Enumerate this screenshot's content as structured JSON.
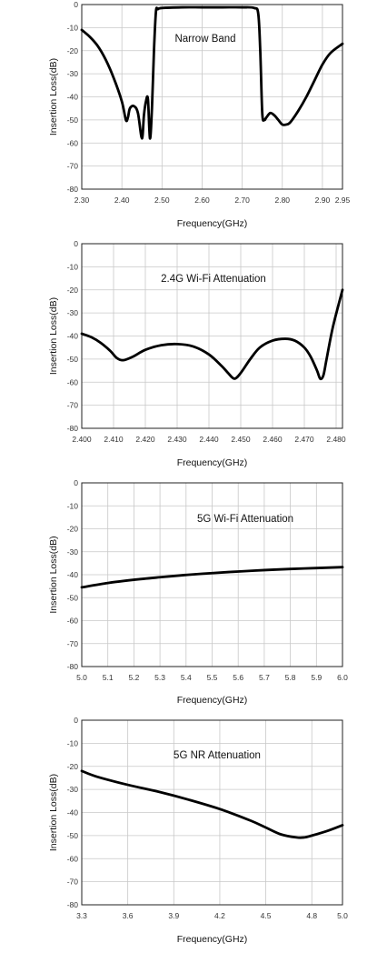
{
  "chart_data": [
    {
      "type": "line",
      "title": "Narrow Band",
      "xlabel": "Frequency(GHz)",
      "ylabel": "Insertion Loss(dB)",
      "xlim": [
        2.3,
        2.95
      ],
      "ylim": [
        -80,
        0
      ],
      "xticks": [
        "2.30",
        "2.40",
        "2.50",
        "2.60",
        "2.70",
        "2.80",
        "2.90",
        "2.95"
      ],
      "xtick_values": [
        2.3,
        2.4,
        2.5,
        2.6,
        2.7,
        2.8,
        2.9,
        2.95
      ],
      "yticks": [
        0,
        -10,
        -20,
        -30,
        -40,
        -50,
        -60,
        -70,
        -80
      ],
      "grid": true,
      "series": [
        {
          "x": [
            2.3,
            2.32,
            2.34,
            2.36,
            2.38,
            2.4,
            2.41,
            2.415,
            2.42,
            2.43,
            2.44,
            2.45,
            2.455,
            2.46,
            2.465,
            2.47,
            2.475,
            2.48,
            2.485,
            2.49,
            2.5,
            2.55,
            2.6,
            2.65,
            2.7,
            2.73,
            2.74,
            2.745,
            2.75,
            2.755,
            2.76,
            2.77,
            2.78,
            2.79,
            2.8,
            2.81,
            2.82,
            2.84,
            2.86,
            2.88,
            2.9,
            2.92,
            2.95
          ],
          "y": [
            -11,
            -14,
            -18,
            -24,
            -32,
            -42,
            -50,
            -49,
            -45,
            -44,
            -47,
            -58,
            -48,
            -42,
            -41,
            -58,
            -45,
            -20,
            -3,
            -2,
            -1.5,
            -1.2,
            -1.2,
            -1.2,
            -1.2,
            -1.5,
            -4,
            -20,
            -47,
            -50,
            -49,
            -47,
            -48,
            -50,
            -52,
            -52,
            -51,
            -46,
            -40,
            -33,
            -26,
            -21,
            -17
          ]
        }
      ]
    },
    {
      "type": "line",
      "title": "2.4G Wi-Fi Attenuation",
      "xlabel": "Frequency(GHz)",
      "ylabel": "Insertion Loss(dB)",
      "xlim": [
        2.4,
        2.482
      ],
      "ylim": [
        -80,
        0
      ],
      "xticks": [
        "2.400",
        "2.410",
        "2.420",
        "2.430",
        "2.440",
        "2.450",
        "2.460",
        "2.470",
        "2.480"
      ],
      "xtick_values": [
        2.4,
        2.41,
        2.42,
        2.43,
        2.44,
        2.45,
        2.46,
        2.47,
        2.48
      ],
      "yticks": [
        0,
        -10,
        -20,
        -30,
        -40,
        -50,
        -60,
        -70,
        -80
      ],
      "grid": true,
      "series": [
        {
          "x": [
            2.4,
            2.403,
            2.406,
            2.409,
            2.411,
            2.413,
            2.416,
            2.42,
            2.425,
            2.43,
            2.435,
            2.44,
            2.444,
            2.446,
            2.448,
            2.45,
            2.453,
            2.456,
            2.46,
            2.464,
            2.467,
            2.47,
            2.472,
            2.474,
            2.475,
            2.476,
            2.477,
            2.479,
            2.482
          ],
          "y": [
            -39,
            -40.5,
            -43,
            -46.5,
            -49.5,
            -50.5,
            -49,
            -46,
            -44,
            -43.5,
            -44.5,
            -48,
            -53,
            -56,
            -58.5,
            -56,
            -50,
            -45,
            -42,
            -41.2,
            -42,
            -45,
            -49,
            -55,
            -58.5,
            -57,
            -50,
            -36,
            -20
          ]
        }
      ]
    },
    {
      "type": "line",
      "title": "5G Wi-Fi Attenuation",
      "xlabel": "Frequency(GHz)",
      "ylabel": "Insertion Loss(dB)",
      "xlim": [
        5.0,
        6.0
      ],
      "ylim": [
        -80,
        0
      ],
      "xticks": [
        "5.0",
        "5.1",
        "5.2",
        "5.3",
        "5.4",
        "5.5",
        "5.6",
        "5.7",
        "5.8",
        "5.9",
        "6.0"
      ],
      "xtick_values": [
        5.0,
        5.1,
        5.2,
        5.3,
        5.4,
        5.5,
        5.6,
        5.7,
        5.8,
        5.9,
        6.0
      ],
      "yticks": [
        0,
        -10,
        -20,
        -30,
        -40,
        -50,
        -60,
        -70,
        -80
      ],
      "grid": true,
      "series": [
        {
          "x": [
            5.0,
            5.1,
            5.2,
            5.3,
            5.4,
            5.5,
            5.6,
            5.7,
            5.8,
            5.9,
            6.0
          ],
          "y": [
            -45.5,
            -43.6,
            -42.2,
            -41.1,
            -40.1,
            -39.3,
            -38.6,
            -38.0,
            -37.5,
            -37.1,
            -36.7
          ]
        }
      ]
    },
    {
      "type": "line",
      "title": "5G NR Attenuation",
      "xlabel": "Frequency(GHz)",
      "ylabel": "Insertion Loss(dB)",
      "xlim": [
        3.3,
        5.0
      ],
      "ylim": [
        -80,
        0
      ],
      "xticks": [
        "3.3",
        "3.6",
        "3.9",
        "4.2",
        "4.5",
        "4.8",
        "5.0"
      ],
      "xtick_values": [
        3.3,
        3.6,
        3.9,
        4.2,
        4.5,
        4.8,
        5.0
      ],
      "yticks": [
        0,
        -10,
        -20,
        -30,
        -40,
        -50,
        -60,
        -70,
        -80
      ],
      "grid": true,
      "series": [
        {
          "x": [
            3.3,
            3.4,
            3.6,
            3.8,
            4.0,
            4.2,
            4.4,
            4.5,
            4.6,
            4.7,
            4.75,
            4.8,
            4.9,
            5.0
          ],
          "y": [
            -22,
            -24.5,
            -28,
            -31,
            -34.5,
            -38.5,
            -43.5,
            -46.5,
            -49.5,
            -50.8,
            -50.8,
            -50,
            -48,
            -45.5
          ]
        }
      ]
    }
  ]
}
